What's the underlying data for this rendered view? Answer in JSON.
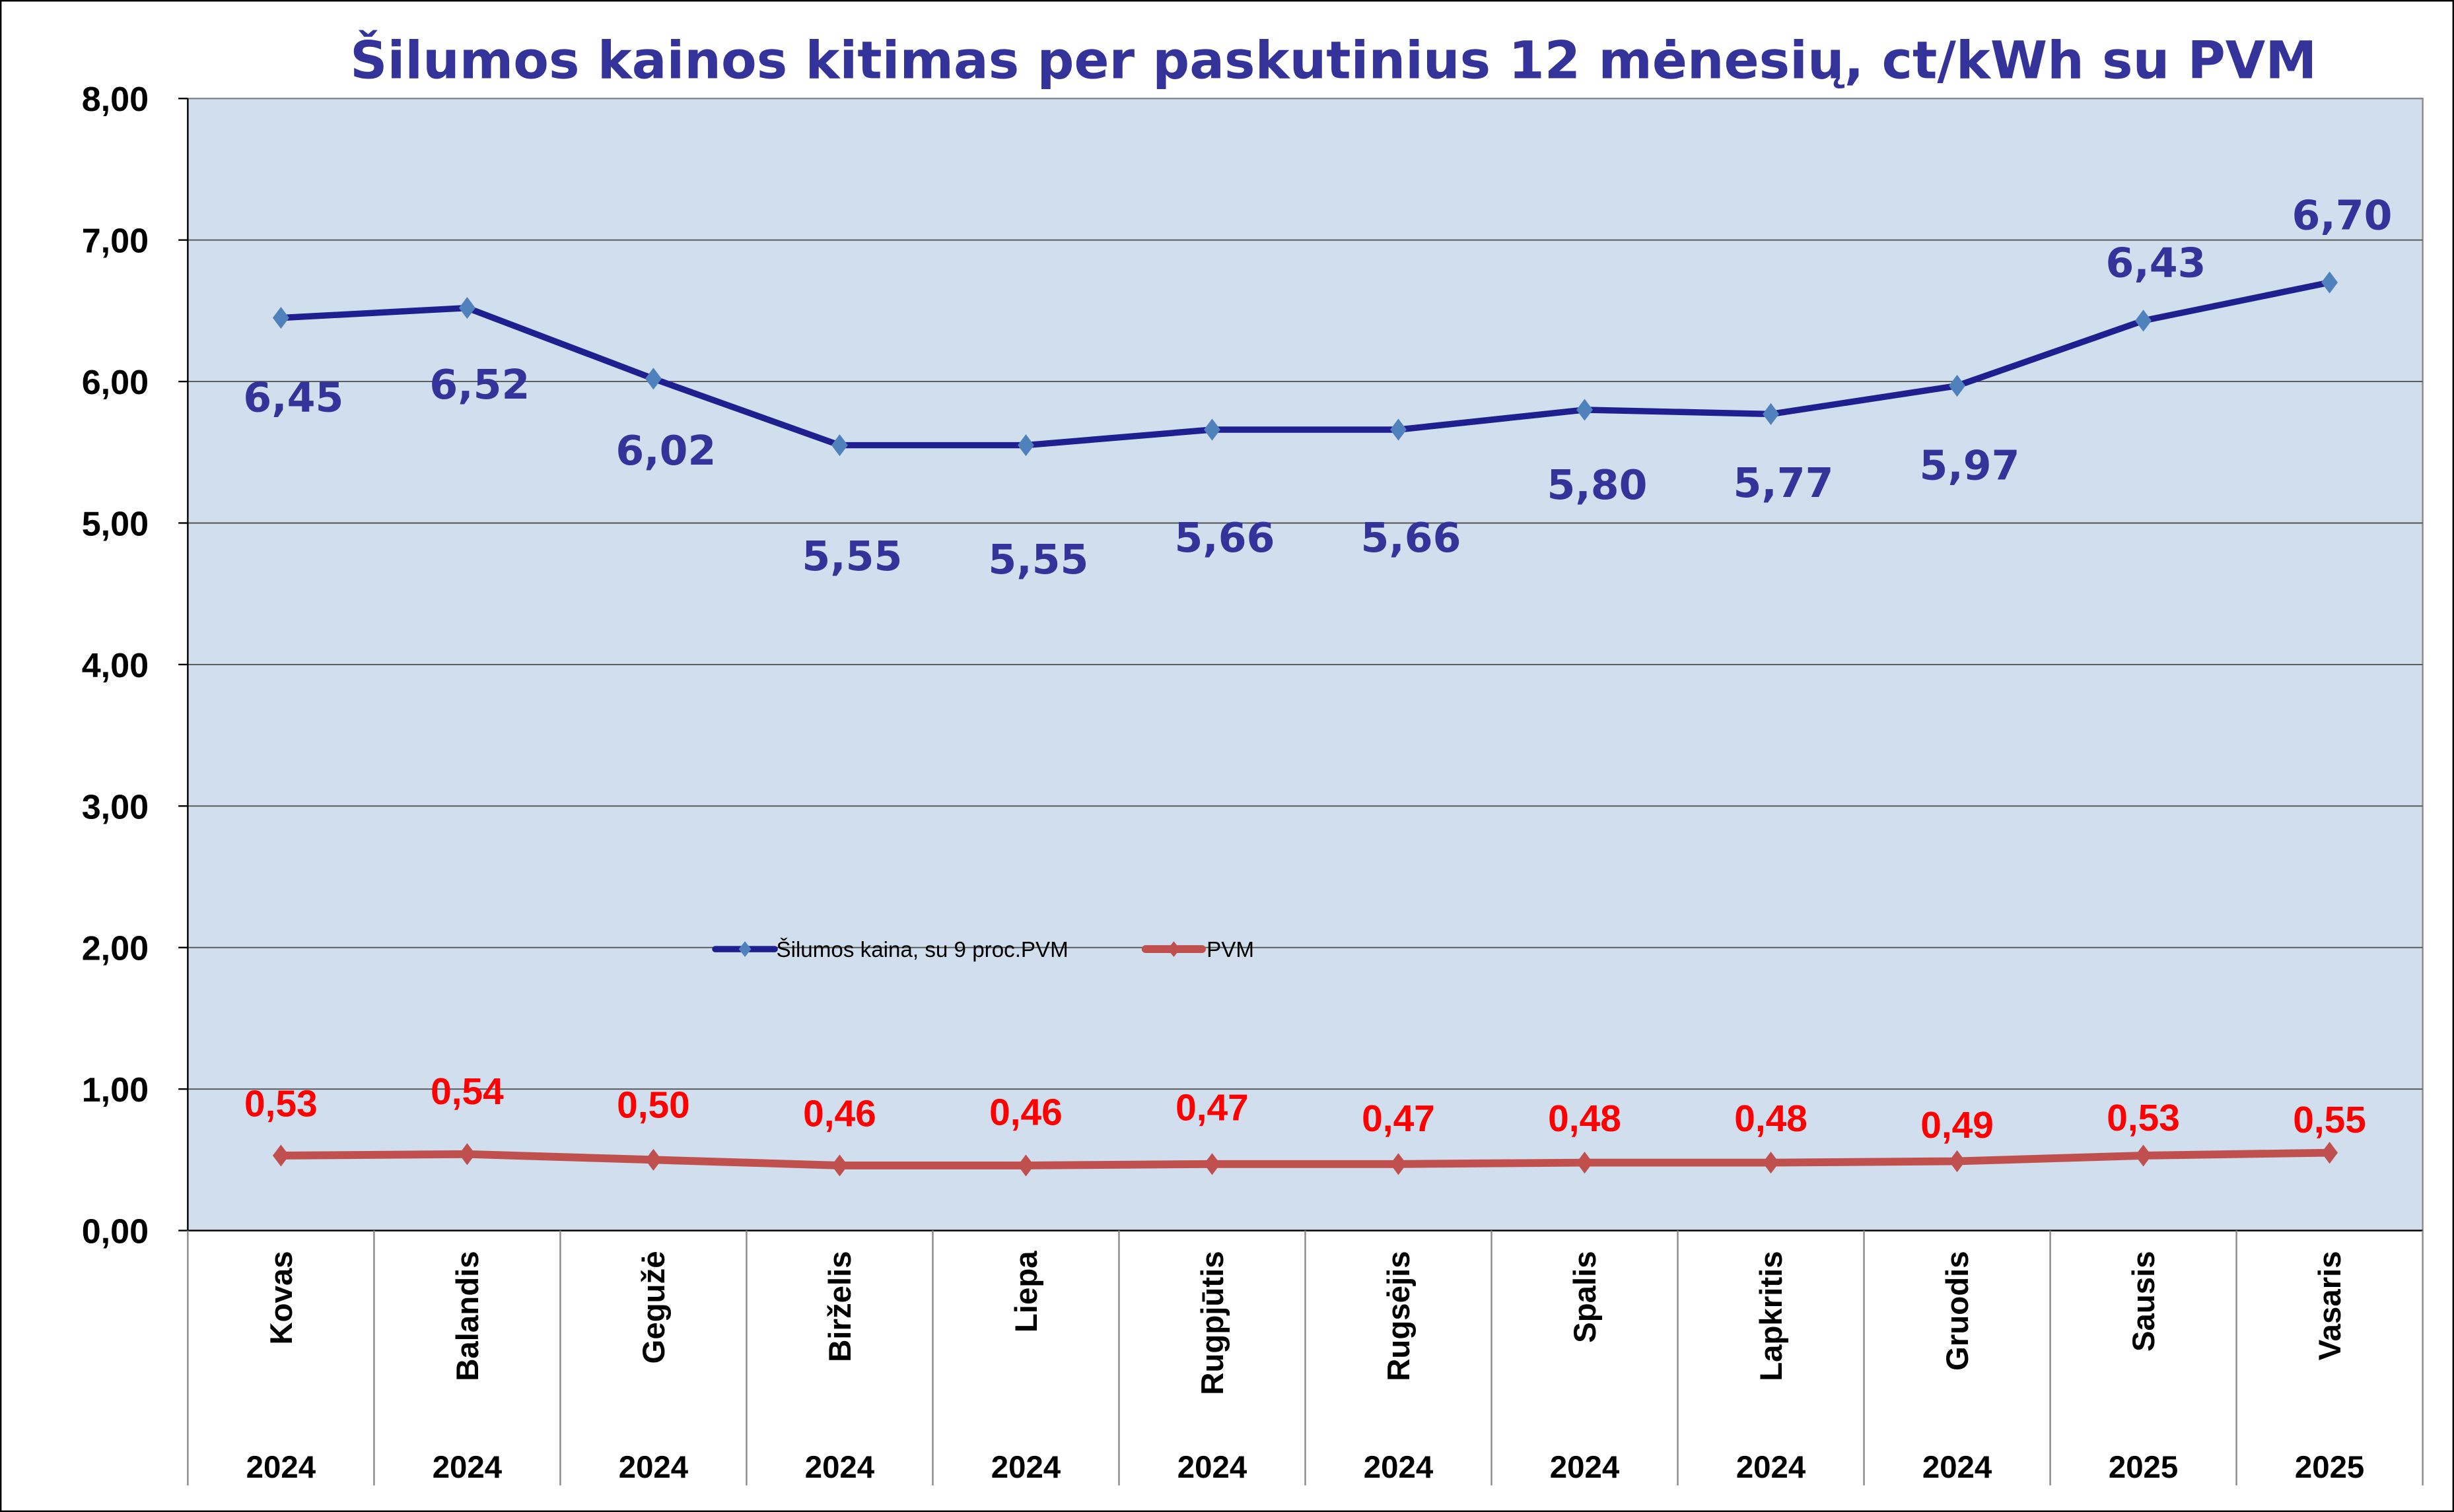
{
  "chart_data": {
    "type": "line",
    "title": "Šilumos kainos kitimas per paskutinius 12 mėnesių, ct/kWh su PVM",
    "categories": [
      "Kovas",
      "Balandis",
      "Gegužė",
      "Birželis",
      "Liepa",
      "Rugpjūtis",
      "Rugsėjis",
      "Spalis",
      "Lapkritis",
      "Gruodis",
      "Sausis",
      "Vasaris"
    ],
    "years": [
      "2024",
      "2024",
      "2024",
      "2024",
      "2024",
      "2024",
      "2024",
      "2024",
      "2024",
      "2024",
      "2025",
      "2025"
    ],
    "series": [
      {
        "name": "Šilumos kaina, su 9 proc.PVM",
        "color": "#1f1f8f",
        "marker_color": "#4f81bd",
        "label_color": "#333399",
        "values": [
          6.45,
          6.52,
          6.02,
          5.55,
          5.55,
          5.66,
          5.66,
          5.8,
          5.77,
          5.97,
          6.43,
          6.7
        ],
        "labels": [
          "6,45",
          "6,52",
          "6,02",
          "5,55",
          "5,55",
          "5,66",
          "5,66",
          "5,80",
          "5,77",
          "5,97",
          "6,43",
          "6,70"
        ]
      },
      {
        "name": "PVM",
        "color": "#c0504d",
        "marker_color": "#c0504d",
        "label_color": "#ff0000",
        "values": [
          0.53,
          0.54,
          0.5,
          0.46,
          0.46,
          0.47,
          0.47,
          0.48,
          0.48,
          0.49,
          0.53,
          0.55
        ],
        "labels": [
          "0,53",
          "0,54",
          "0,50",
          "0,46",
          "0,46",
          "0,47",
          "0,47",
          "0,48",
          "0,48",
          "0,49",
          "0,53",
          "0,55"
        ]
      }
    ],
    "ylim": [
      0,
      8
    ],
    "yticks": [
      "0,00",
      "1,00",
      "2,00",
      "3,00",
      "4,00",
      "5,00",
      "6,00",
      "7,00",
      "8,00"
    ],
    "grid": true,
    "legend_position": "center",
    "plot_background": "#d0deed"
  }
}
